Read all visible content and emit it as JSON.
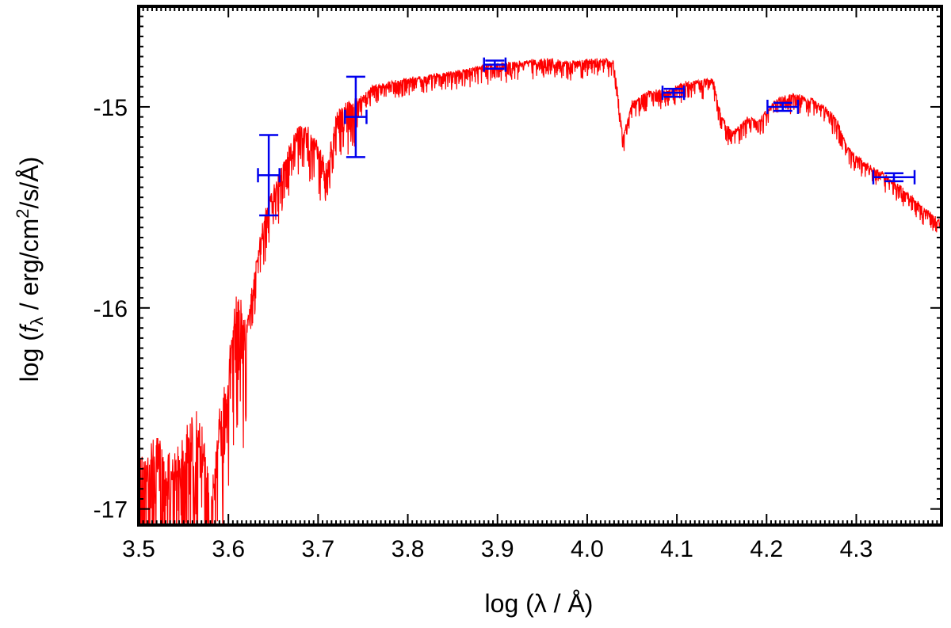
{
  "chart_data": {
    "type": "line",
    "xlabel": "log (λ / Å)",
    "ylabel_parts": {
      "pre": "log (",
      "f": "f",
      "sub": "λ",
      "mid": " / erg/cm",
      "sup": "2",
      "post": "/s/Å)"
    },
    "xlim": [
      3.5,
      4.395
    ],
    "ylim": [
      -17.08,
      -14.5
    ],
    "x_ticks": [
      3.5,
      3.6,
      3.7,
      3.8,
      3.9,
      4.0,
      4.1,
      4.2,
      4.3
    ],
    "x_tick_labels": [
      "3.5",
      "3.6",
      "3.7",
      "3.8",
      "3.9",
      "4.0",
      "4.1",
      "4.2",
      "4.3"
    ],
    "y_ticks": [
      -15,
      -16,
      -17
    ],
    "y_tick_labels": [
      "-15",
      "-16",
      "-17"
    ],
    "grid": false,
    "series": [
      {
        "kind": "model-spectrum",
        "color": "#ff0000",
        "x": [
          3.5,
          3.52,
          3.54,
          3.56,
          3.57,
          3.58,
          3.59,
          3.6,
          3.61,
          3.62,
          3.63,
          3.64,
          3.65,
          3.66,
          3.67,
          3.68,
          3.69,
          3.7,
          3.71,
          3.72,
          3.73,
          3.74,
          3.75,
          3.76,
          3.78,
          3.8,
          3.82,
          3.84,
          3.86,
          3.88,
          3.9,
          3.92,
          3.94,
          3.96,
          3.98,
          4.0,
          4.02,
          4.03,
          4.04,
          4.05,
          4.07,
          4.09,
          4.11,
          4.13,
          4.14,
          4.15,
          4.16,
          4.17,
          4.18,
          4.19,
          4.2,
          4.21,
          4.22,
          4.23,
          4.25,
          4.27,
          4.28,
          4.29,
          4.31,
          4.33,
          4.35,
          4.37,
          4.395
        ],
        "y": [
          -16.75,
          -16.7,
          -16.78,
          -16.55,
          -16.6,
          -16.95,
          -16.55,
          -16.25,
          -15.95,
          -16.1,
          -15.8,
          -15.55,
          -15.4,
          -15.3,
          -15.18,
          -15.1,
          -15.12,
          -15.2,
          -15.3,
          -15.05,
          -15.0,
          -14.98,
          -14.95,
          -14.9,
          -14.88,
          -14.86,
          -14.85,
          -14.83,
          -14.82,
          -14.8,
          -14.79,
          -14.78,
          -14.77,
          -14.76,
          -14.78,
          -14.77,
          -14.76,
          -14.78,
          -15.15,
          -14.98,
          -14.92,
          -14.92,
          -14.88,
          -14.87,
          -14.86,
          -15.05,
          -15.12,
          -15.1,
          -15.05,
          -15.08,
          -15.02,
          -14.97,
          -14.95,
          -14.94,
          -14.96,
          -15.02,
          -15.08,
          -15.2,
          -15.28,
          -15.33,
          -15.4,
          -15.48,
          -15.58
        ]
      },
      {
        "kind": "photometry",
        "color": "#0000ee",
        "points": [
          {
            "x": 3.645,
            "y": -15.34,
            "xerr": 0.012,
            "yerr": 0.2
          },
          {
            "x": 3.742,
            "y": -15.05,
            "xerr": 0.012,
            "yerr": 0.2
          },
          {
            "x": 3.897,
            "y": -14.79,
            "xerr": 0.012,
            "yerr": 0.02
          },
          {
            "x": 4.096,
            "y": -14.93,
            "xerr": 0.012,
            "yerr": 0.02
          },
          {
            "x": 4.218,
            "y": -15.0,
            "xerr": 0.017,
            "yerr": 0.02
          },
          {
            "x": 4.342,
            "y": -15.35,
            "xerr": 0.023,
            "yerr": 0.02
          }
        ]
      }
    ]
  }
}
